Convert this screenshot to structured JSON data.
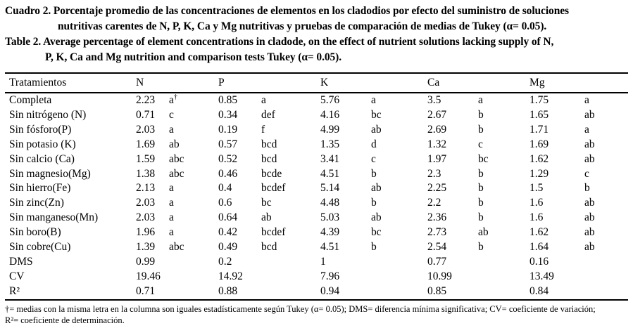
{
  "caption_es": {
    "line1": "Cuadro 2. Porcentaje promedio de las concentraciones de elementos en los cladodios por efecto del suministro de soluciones",
    "line2": "nutritivas carentes de N, P, K, Ca y Mg nutritivas y pruebas de comparación de medias de Tukey (α= 0.05)."
  },
  "caption_en": {
    "line1": "Table 2. Average percentage of element concentrations in cladode, on the effect of nutrient solutions lacking supply of N,",
    "line2": "P, K, Ca and Mg nutrition and comparison tests Tukey (α= 0.05)."
  },
  "table": {
    "treatment_header": "Tratamientos",
    "element_headers": [
      "N",
      "P",
      "K",
      "Ca",
      "Mg"
    ],
    "rows": [
      {
        "treatment": "Completa",
        "values": [
          "2.23",
          "a†",
          "0.85",
          "a",
          "5.76",
          "a",
          "3.5",
          "a",
          "1.75",
          "a"
        ]
      },
      {
        "treatment": "Sin nitrógeno (N)",
        "values": [
          "0.71",
          "c",
          "0.34",
          "def",
          "4.16",
          "bc",
          "2.67",
          "b",
          "1.65",
          "ab"
        ]
      },
      {
        "treatment": "Sin fósforo(P)",
        "values": [
          "2.03",
          "a",
          "0.19",
          "f",
          "4.99",
          "ab",
          "2.69",
          "b",
          "1.71",
          "a"
        ]
      },
      {
        "treatment": "Sin potasio (K)",
        "values": [
          "1.69",
          "ab",
          "0.57",
          "bcd",
          "1.35",
          "d",
          "1.32",
          "c",
          "1.69",
          "ab"
        ]
      },
      {
        "treatment": "Sin calcio (Ca)",
        "values": [
          "1.59",
          "abc",
          "0.52",
          "bcd",
          "3.41",
          "c",
          "1.97",
          "bc",
          "1.62",
          "ab"
        ]
      },
      {
        "treatment": "Sin magnesio(Mg)",
        "values": [
          "1.38",
          "abc",
          "0.46",
          "bcde",
          "4.51",
          "b",
          "2.3",
          "b",
          "1.29",
          "c"
        ]
      },
      {
        "treatment": "Sin hierro(Fe)",
        "values": [
          "2.13",
          "a",
          "0.4",
          "bcdef",
          "5.14",
          "ab",
          "2.25",
          "b",
          "1.5",
          "b"
        ]
      },
      {
        "treatment": "Sin zinc(Zn)",
        "values": [
          "2.03",
          "a",
          "0.6",
          "bc",
          "4.48",
          "b",
          "2.2",
          "b",
          "1.6",
          "ab"
        ]
      },
      {
        "treatment": "Sin manganeso(Mn)",
        "values": [
          "2.03",
          "a",
          "0.64",
          "ab",
          "5.03",
          "ab",
          "2.36",
          "b",
          "1.6",
          "ab"
        ]
      },
      {
        "treatment": "Sin boro(B)",
        "values": [
          "1.96",
          "a",
          "0.42",
          "bcdef",
          "4.39",
          "bc",
          "2.73",
          "ab",
          "1.62",
          "ab"
        ]
      },
      {
        "treatment": "Sin cobre(Cu)",
        "values": [
          "1.39",
          "abc",
          "0.49",
          "bcd",
          "4.51",
          "b",
          "2.54",
          "b",
          "1.64",
          "ab"
        ]
      },
      {
        "treatment": "DMS",
        "values": [
          "0.99",
          "",
          "0.2",
          "",
          "1",
          "",
          "0.77",
          "",
          "0.16",
          ""
        ]
      },
      {
        "treatment": "CV",
        "values": [
          "19.46",
          "",
          "14.92",
          "",
          "7.96",
          "",
          "10.99",
          "",
          "13.49",
          ""
        ]
      },
      {
        "treatment": "R²",
        "values": [
          "0.71",
          "",
          "0.88",
          "",
          "0.94",
          "",
          "0.85",
          "",
          "0.84",
          ""
        ]
      }
    ]
  },
  "footnote": {
    "line1": "†= medias con la misma letra en la columna son iguales estadísticamente según Tukey (α= 0.05);  DMS= diferencia mínima significativa; CV= coeficiente de variación;",
    "line2": "R²= coeficiente de determinación."
  }
}
